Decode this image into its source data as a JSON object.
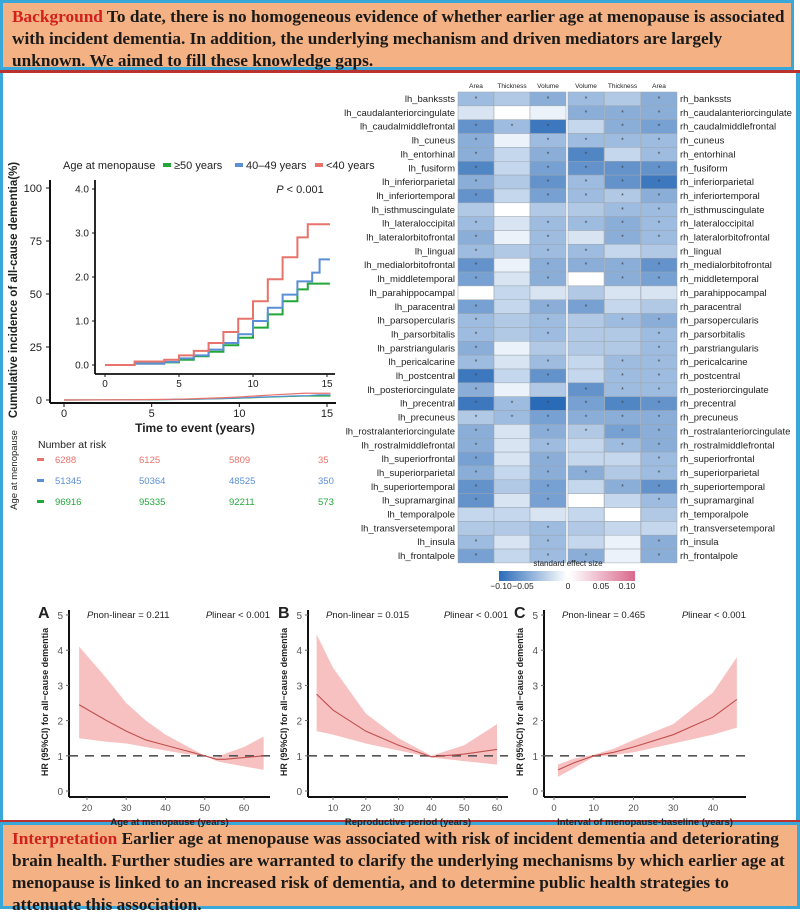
{
  "background": {
    "lead": "Background",
    "text": " To date, there is no homogeneous evidence of whether earlier age at menopause is associated with incident dementia. In addition, the underlying mechanism and driven mediators are largely unknown. We aimed to fill these knowledge gaps."
  },
  "interpretation": {
    "lead": "Interpretation",
    "text": " Earlier age at menopause was associated with risk of incident dementia and deteriorating brain health. Further studies are warranted to clarify the underlying mechanisms by which earlier age at menopause is linked to an increased risk of dementia, and to determine public health strategies to attenuate this association."
  },
  "colors": {
    "lt40": "#e8736c",
    "g40_49": "#5b8fd6",
    "ge50": "#22a83a",
    "heat_neg": "#2a6bb8",
    "heat_pos": "#d9698d",
    "band": "#f7b6b6",
    "curve": "#c0504d",
    "frame": "#3aa7d9"
  },
  "chart_data": [
    {
      "type": "line",
      "name": "cumulative-incidence",
      "legend_title": "Age at menopause",
      "legend_placement": "top",
      "ylabel": "Cumulative incidence of all-cause dementia(%)",
      "xlabel": "Time to event (years)",
      "annotation": "P < 0.001",
      "xlim": [
        0,
        15
      ],
      "xticks": [
        "0",
        "5",
        "10",
        "15"
      ],
      "ylim": [
        0,
        100
      ],
      "yticks": [
        "0",
        "25",
        "50",
        "75",
        "100"
      ],
      "inset": {
        "xlim": [
          0,
          15
        ],
        "ylim": [
          0,
          4
        ],
        "xticks": [
          "0",
          "5",
          "10",
          "15"
        ],
        "yticks": [
          "0.0",
          "1.0",
          "2.0",
          "3.0",
          "4.0"
        ]
      },
      "series": [
        {
          "name": "≥50 years",
          "color_key": "ge50",
          "x": [
            0,
            2,
            4,
            5,
            6,
            7,
            8,
            9,
            10,
            11,
            12,
            13,
            13.7,
            15.2
          ],
          "y": [
            0,
            0.03,
            0.06,
            0.12,
            0.2,
            0.3,
            0.45,
            0.62,
            0.85,
            1.15,
            1.45,
            1.72,
            1.85,
            1.85
          ]
        },
        {
          "name": "40–49 years",
          "color_key": "g40_49",
          "x": [
            0,
            2,
            4,
            5,
            6,
            7,
            8,
            9,
            10,
            11,
            12,
            13,
            14,
            14.5,
            15.2
          ],
          "y": [
            0,
            0.03,
            0.07,
            0.15,
            0.22,
            0.35,
            0.5,
            0.7,
            1.0,
            1.3,
            1.6,
            1.9,
            2.1,
            2.4,
            2.4
          ]
        },
        {
          "name": "<40 years",
          "color_key": "lt40",
          "x": [
            0,
            2,
            4,
            5,
            6,
            7,
            8,
            9,
            10,
            11,
            12,
            13,
            13.7,
            15.2
          ],
          "y": [
            0,
            0.08,
            0.12,
            0.22,
            0.32,
            0.5,
            0.75,
            1.05,
            1.45,
            1.95,
            2.45,
            2.9,
            3.2,
            3.2
          ]
        }
      ],
      "risk_table": {
        "title": "Number at risk",
        "group_label": "Age at menopause",
        "times": [
          0,
          5,
          10,
          15
        ],
        "rows": [
          {
            "color_key": "lt40",
            "values": [
              "6288",
              "6125",
              "5809",
              "35"
            ]
          },
          {
            "color_key": "g40_49",
            "values": [
              "51345",
              "50364",
              "48525",
              "350"
            ]
          },
          {
            "color_key": "ge50",
            "values": [
              "96916",
              "95335",
              "92211",
              "573"
            ]
          }
        ]
      }
    },
    {
      "type": "heatmap",
      "name": "brain-structure-effects",
      "left_columns": [
        "Area",
        "Thickness",
        "Volume"
      ],
      "right_columns": [
        "Volume",
        "Thickness",
        "Area"
      ],
      "regions": [
        "bankssts",
        "caudalanteriorcingulate",
        "caudalmiddlefrontal",
        "cuneus",
        "entorhinal",
        "fusiform",
        "inferiorparietal",
        "inferiortemporal",
        "isthmuscingulate",
        "lateraloccipital",
        "lateralorbitofrontal",
        "lingual",
        "medialorbitofrontal",
        "middletemporal",
        "parahippocampal",
        "paracentral",
        "parsopercularis",
        "parsorbitalis",
        "parstriangularis",
        "pericalcarine",
        "postcentral",
        "posteriorcingulate",
        "precentral",
        "precuneus",
        "rostralanteriorcingulate",
        "rostralmiddlefrontal",
        "superiorfrontal",
        "superiorparietal",
        "superiortemporal",
        "supramarginal",
        "temporalpole",
        "transversetemporal",
        "insula",
        "frontalpole"
      ],
      "left_prefix": "lh_",
      "right_prefix": "rh_",
      "values": [
        [
          -0.05,
          -0.04,
          -0.06,
          -0.05,
          -0.04,
          -0.06
        ],
        [
          -0.02,
          0.0,
          -0.01,
          -0.06,
          -0.06,
          -0.06
        ],
        [
          -0.08,
          -0.05,
          -0.1,
          -0.03,
          -0.06,
          -0.07
        ],
        [
          -0.06,
          -0.01,
          -0.05,
          -0.05,
          -0.05,
          -0.05
        ],
        [
          -0.06,
          -0.03,
          -0.06,
          -0.09,
          -0.03,
          -0.05
        ],
        [
          -0.09,
          -0.03,
          -0.07,
          -0.08,
          -0.08,
          -0.08
        ],
        [
          -0.06,
          -0.04,
          -0.08,
          -0.05,
          -0.08,
          -0.1
        ],
        [
          -0.08,
          -0.03,
          -0.07,
          -0.05,
          -0.04,
          -0.06
        ],
        [
          -0.04,
          0.0,
          -0.04,
          -0.04,
          -0.05,
          -0.05
        ],
        [
          -0.05,
          -0.02,
          -0.05,
          -0.05,
          -0.06,
          -0.05
        ],
        [
          -0.06,
          -0.01,
          -0.05,
          -0.02,
          -0.06,
          -0.05
        ],
        [
          -0.05,
          -0.04,
          -0.05,
          -0.05,
          -0.03,
          -0.04
        ],
        [
          -0.08,
          -0.01,
          -0.06,
          -0.06,
          -0.06,
          -0.08
        ],
        [
          -0.07,
          -0.02,
          -0.06,
          0.0,
          -0.06,
          -0.07
        ],
        [
          0.0,
          -0.03,
          -0.02,
          -0.04,
          -0.02,
          -0.02
        ],
        [
          -0.07,
          -0.03,
          -0.06,
          -0.07,
          -0.03,
          -0.04
        ],
        [
          -0.05,
          -0.04,
          -0.05,
          -0.04,
          -0.05,
          -0.06
        ],
        [
          -0.05,
          -0.04,
          -0.05,
          -0.04,
          -0.04,
          -0.05
        ],
        [
          -0.06,
          -0.01,
          -0.04,
          -0.04,
          -0.04,
          -0.05
        ],
        [
          -0.05,
          -0.02,
          -0.05,
          -0.03,
          -0.05,
          -0.05
        ],
        [
          -0.1,
          -0.03,
          -0.08,
          -0.03,
          -0.05,
          -0.05
        ],
        [
          -0.06,
          -0.01,
          -0.04,
          -0.08,
          -0.05,
          -0.05
        ],
        [
          -0.1,
          -0.05,
          -0.11,
          -0.07,
          -0.09,
          -0.08
        ],
        [
          -0.04,
          -0.05,
          -0.07,
          -0.06,
          -0.06,
          -0.06
        ],
        [
          -0.06,
          -0.02,
          -0.06,
          -0.04,
          -0.07,
          -0.06
        ],
        [
          -0.06,
          -0.02,
          -0.05,
          -0.03,
          -0.05,
          -0.06
        ],
        [
          -0.07,
          -0.02,
          -0.06,
          -0.03,
          -0.03,
          -0.05
        ],
        [
          -0.06,
          -0.03,
          -0.06,
          -0.06,
          -0.04,
          -0.05
        ],
        [
          -0.08,
          -0.04,
          -0.07,
          -0.03,
          -0.06,
          -0.08
        ],
        [
          -0.08,
          -0.02,
          -0.07,
          0.0,
          -0.03,
          -0.05
        ],
        [
          -0.03,
          -0.03,
          -0.02,
          -0.03,
          0.0,
          -0.04
        ],
        [
          -0.04,
          -0.04,
          -0.05,
          -0.04,
          -0.03,
          -0.03
        ],
        [
          -0.05,
          -0.02,
          -0.05,
          -0.03,
          -0.01,
          -0.06
        ],
        [
          -0.07,
          -0.03,
          -0.05,
          -0.06,
          -0.01,
          -0.06
        ]
      ],
      "significant": [
        [
          1,
          0,
          1,
          1,
          0,
          1
        ],
        [
          0,
          0,
          0,
          1,
          1,
          1
        ],
        [
          1,
          1,
          1,
          0,
          1,
          1
        ],
        [
          1,
          0,
          1,
          1,
          1,
          1
        ],
        [
          1,
          0,
          1,
          1,
          0,
          1
        ],
        [
          1,
          0,
          1,
          1,
          1,
          1
        ],
        [
          1,
          0,
          1,
          1,
          1,
          1
        ],
        [
          1,
          0,
          1,
          1,
          1,
          1
        ],
        [
          0,
          0,
          0,
          0,
          1,
          1
        ],
        [
          1,
          0,
          1,
          1,
          1,
          1
        ],
        [
          1,
          0,
          1,
          0,
          1,
          1
        ],
        [
          1,
          0,
          1,
          1,
          0,
          0
        ],
        [
          1,
          0,
          1,
          1,
          1,
          1
        ],
        [
          1,
          0,
          1,
          0,
          1,
          1
        ],
        [
          0,
          0,
          0,
          0,
          0,
          0
        ],
        [
          1,
          0,
          1,
          1,
          0,
          0
        ],
        [
          1,
          0,
          1,
          0,
          1,
          1
        ],
        [
          1,
          0,
          1,
          0,
          0,
          1
        ],
        [
          1,
          0,
          0,
          0,
          0,
          1
        ],
        [
          1,
          0,
          1,
          0,
          1,
          1
        ],
        [
          1,
          0,
          1,
          0,
          1,
          1
        ],
        [
          1,
          0,
          0,
          1,
          1,
          1
        ],
        [
          1,
          1,
          1,
          1,
          1,
          1
        ],
        [
          1,
          1,
          1,
          1,
          1,
          1
        ],
        [
          1,
          0,
          1,
          1,
          1,
          1
        ],
        [
          1,
          0,
          1,
          0,
          1,
          1
        ],
        [
          1,
          0,
          1,
          0,
          0,
          1
        ],
        [
          1,
          0,
          1,
          1,
          0,
          1
        ],
        [
          1,
          0,
          1,
          0,
          1,
          1
        ],
        [
          1,
          0,
          1,
          0,
          0,
          1
        ],
        [
          0,
          0,
          0,
          0,
          0,
          0
        ],
        [
          0,
          0,
          1,
          0,
          0,
          0
        ],
        [
          1,
          0,
          1,
          0,
          0,
          1
        ],
        [
          1,
          0,
          1,
          1,
          0,
          1
        ]
      ],
      "marker": "*",
      "legend": {
        "title": "standard effect size",
        "range": [
          -0.1,
          0.1
        ],
        "ticks": [
          "−0.10",
          "−0.05",
          "0",
          "0.05",
          "0.10"
        ]
      }
    },
    {
      "type": "area",
      "name": "spline-A",
      "panel": "A",
      "p_nonlinear": "Pnon-linear = 0.211",
      "p_linear": "Plinear < 0.001",
      "ylabel": "HR (95%CI) for all−cause dementia",
      "xlabel": "Age at menopause (years)",
      "xlim": [
        17,
        66
      ],
      "xticks": [
        20,
        30,
        40,
        50,
        60
      ],
      "ylim": [
        0,
        5
      ],
      "yticks": [
        0,
        1,
        2,
        3,
        4,
        5
      ],
      "reference_line": 1,
      "x": [
        18,
        25,
        30,
        35,
        40,
        45,
        50,
        53,
        55,
        60,
        65
      ],
      "y": [
        2.45,
        2.0,
        1.7,
        1.45,
        1.3,
        1.15,
        1.0,
        0.9,
        0.9,
        0.95,
        1.0
      ],
      "lower": [
        1.5,
        1.4,
        1.35,
        1.25,
        1.15,
        1.05,
        1.0,
        0.85,
        0.8,
        0.7,
        0.6
      ],
      "upper": [
        4.1,
        3.2,
        2.5,
        2.0,
        1.6,
        1.3,
        1.0,
        0.95,
        1.05,
        1.25,
        1.55
      ]
    },
    {
      "type": "area",
      "name": "spline-B",
      "panel": "B",
      "p_nonlinear": "Pnon-linear = 0.015",
      "p_linear": "Plinear < 0.001",
      "ylabel": "HR (95%CI) for all−cause dementia",
      "xlabel": "Reproductive period (years)",
      "xlim": [
        3,
        62
      ],
      "xticks": [
        10,
        20,
        30,
        40,
        50,
        60
      ],
      "ylim": [
        0,
        5
      ],
      "yticks": [
        0,
        1,
        2,
        3,
        4,
        5
      ],
      "reference_line": 1,
      "x": [
        5,
        10,
        20,
        30,
        40,
        50,
        60
      ],
      "y": [
        2.75,
        2.3,
        1.7,
        1.3,
        0.97,
        1.05,
        1.18
      ],
      "lower": [
        1.7,
        1.6,
        1.35,
        1.15,
        0.95,
        0.85,
        0.75
      ],
      "upper": [
        4.45,
        3.5,
        2.2,
        1.5,
        1.0,
        1.3,
        1.9
      ]
    },
    {
      "type": "area",
      "name": "spline-C",
      "panel": "C",
      "p_nonlinear": "Pnon-linear = 0.465",
      "p_linear": "Plinear < 0.001",
      "ylabel": "HR (95%CI) for all−cause dementia",
      "xlabel": "Interval of menopause-baseline (years)",
      "xlim": [
        -2,
        48
      ],
      "xticks": [
        0,
        10,
        20,
        30,
        40
      ],
      "ylim": [
        0,
        5
      ],
      "yticks": [
        0,
        1,
        2,
        3,
        4,
        5
      ],
      "reference_line": 1,
      "x": [
        1,
        5,
        10,
        15,
        20,
        30,
        40,
        46
      ],
      "y": [
        0.6,
        0.8,
        1.0,
        1.1,
        1.25,
        1.6,
        2.1,
        2.6
      ],
      "lower": [
        0.4,
        0.65,
        0.97,
        1.02,
        1.1,
        1.35,
        1.6,
        1.8
      ],
      "upper": [
        0.75,
        0.92,
        1.03,
        1.2,
        1.45,
        1.9,
        2.8,
        3.8
      ]
    }
  ]
}
